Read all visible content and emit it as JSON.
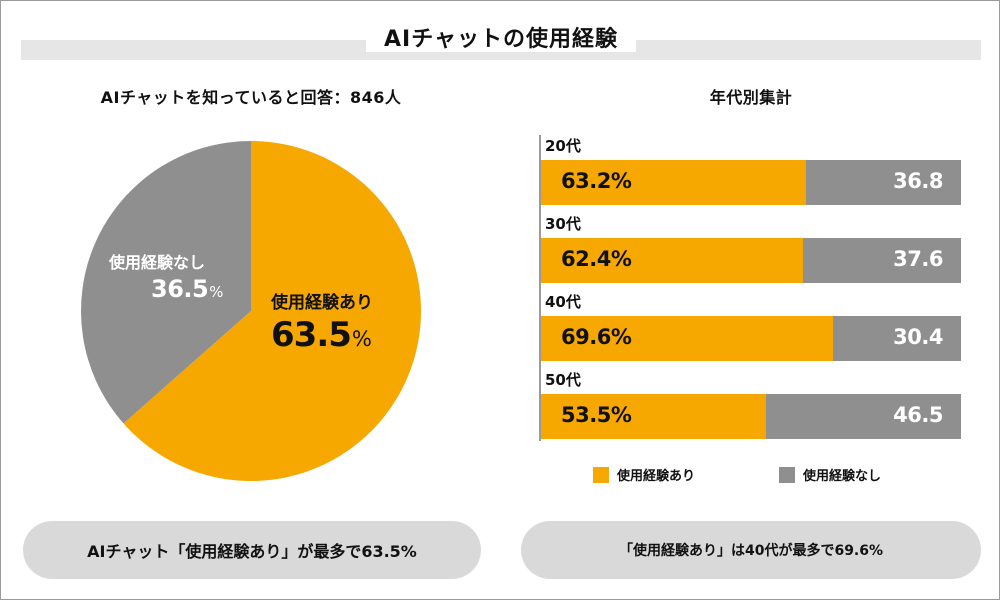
{
  "title": "AIチャットの使用経験",
  "colors": {
    "accent": "#f7a800",
    "grey": "#8f8f8f",
    "pill": "#d9d9d9"
  },
  "chart_data": [
    {
      "type": "pie",
      "title": "AIチャットを知っていると回答：846人",
      "slices": [
        {
          "label": "使用経験あり",
          "value": 63.5,
          "display": "63.5",
          "unit": "%"
        },
        {
          "label": "使用経験なし",
          "value": 36.5,
          "display": "36.5",
          "unit": "%"
        }
      ]
    },
    {
      "type": "bar",
      "stacked": true,
      "orientation": "horizontal",
      "title": "年代別集計",
      "categories": [
        "20代",
        "30代",
        "40代",
        "50代"
      ],
      "series": [
        {
          "name": "使用経験あり",
          "values": [
            63.2,
            62.4,
            69.6,
            53.5
          ],
          "labels": [
            "63.2%",
            "62.4%",
            "69.6%",
            "53.5%"
          ]
        },
        {
          "name": "使用経験なし",
          "values": [
            36.8,
            37.6,
            30.4,
            46.5
          ],
          "labels": [
            "36.8",
            "37.6",
            "30.4",
            "46.5"
          ]
        }
      ],
      "xlim": [
        0,
        100
      ],
      "legend": "bottom"
    }
  ],
  "summary": {
    "left": "AIチャット「使用経験あり」が最多で63.5%",
    "right": "「使用経験あり」は40代が最多で69.6%"
  }
}
